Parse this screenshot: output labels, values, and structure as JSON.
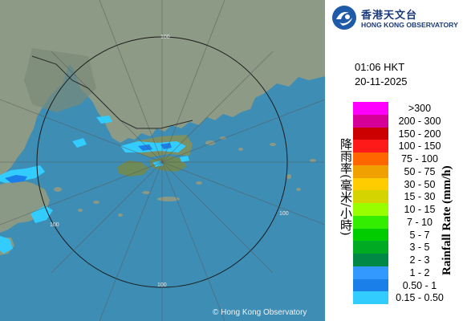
{
  "header": {
    "logo_cn": "香港天文台",
    "logo_en": "HONG KONG OBSERVATORY"
  },
  "timestamp": {
    "time": "01:06 HKT",
    "date": "20-11-2025"
  },
  "legend": {
    "title_cn": "降雨率(毫米/小時)",
    "title_en": "Rainfall Rate (mm/h)",
    "items": [
      {
        "label": ">300",
        "color": "#ff00ff"
      },
      {
        "label": "200 - 300",
        "color": "#d40098"
      },
      {
        "label": "150 - 200",
        "color": "#cc0000"
      },
      {
        "label": "100 - 150",
        "color": "#ff1a1a"
      },
      {
        "label": "75 - 100",
        "color": "#ff6600"
      },
      {
        "label": "50 - 75",
        "color": "#f0a000"
      },
      {
        "label": "30 - 50",
        "color": "#ffcc00"
      },
      {
        "label": "15 - 30",
        "color": "#d4d400"
      },
      {
        "label": "10 - 15",
        "color": "#99ff00"
      },
      {
        "label": "7 - 10",
        "color": "#33ee00"
      },
      {
        "label": "5 - 7",
        "color": "#00cc00"
      },
      {
        "label": "3 - 5",
        "color": "#00aa22"
      },
      {
        "label": "2 - 3",
        "color": "#008844"
      },
      {
        "label": "1 - 2",
        "color": "#3399ff"
      },
      {
        "label": "0.50 - 1",
        "color": "#1a7fe8"
      },
      {
        "label": "0.15 - 0.50",
        "color": "#33ccff"
      }
    ]
  },
  "map": {
    "range_labels": [
      "100",
      "100",
      "100",
      "100"
    ],
    "copyright": "© Hong Kong Observatory"
  }
}
